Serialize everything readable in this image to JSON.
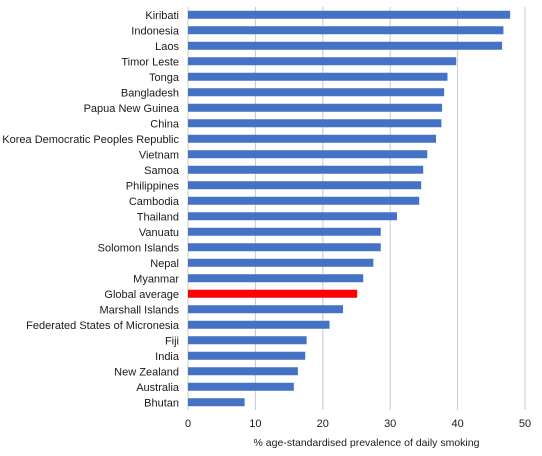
{
  "chart_data": {
    "type": "bar",
    "orientation": "horizontal",
    "xlabel": "% age-standardised prevalence of daily smoking",
    "xlim": [
      0,
      50
    ],
    "xticks": [
      "0",
      "10",
      "20",
      "30",
      "40",
      "50"
    ],
    "grid": true,
    "legend": "none",
    "colors": {
      "default": "#4472c4",
      "highlight": "#ff0000"
    },
    "categories": [
      "Kiribati",
      "Indonesia",
      "Laos",
      "Timor Leste",
      "Tonga",
      "Bangladesh",
      "Papua New Guinea",
      "China",
      "Korea Democratic Peoples Republic",
      "Vietnam",
      "Samoa",
      "Philippines",
      "Cambodia",
      "Thailand",
      "Vanuatu",
      "Solomon Islands",
      "Nepal",
      "Myanmar",
      "Global average",
      "Marshall Islands",
      "Federated States of Micronesia",
      "Fiji",
      "India",
      "New Zealand",
      "Australia",
      "Bhutan"
    ],
    "values": [
      47.8,
      46.8,
      46.6,
      39.8,
      38.5,
      38.0,
      37.7,
      37.6,
      36.8,
      35.5,
      34.9,
      34.6,
      34.3,
      31.0,
      28.6,
      28.6,
      27.5,
      26.0,
      25.1,
      23.0,
      21.0,
      17.6,
      17.4,
      16.3,
      15.7,
      8.4
    ],
    "highlight_category": "Global average"
  }
}
